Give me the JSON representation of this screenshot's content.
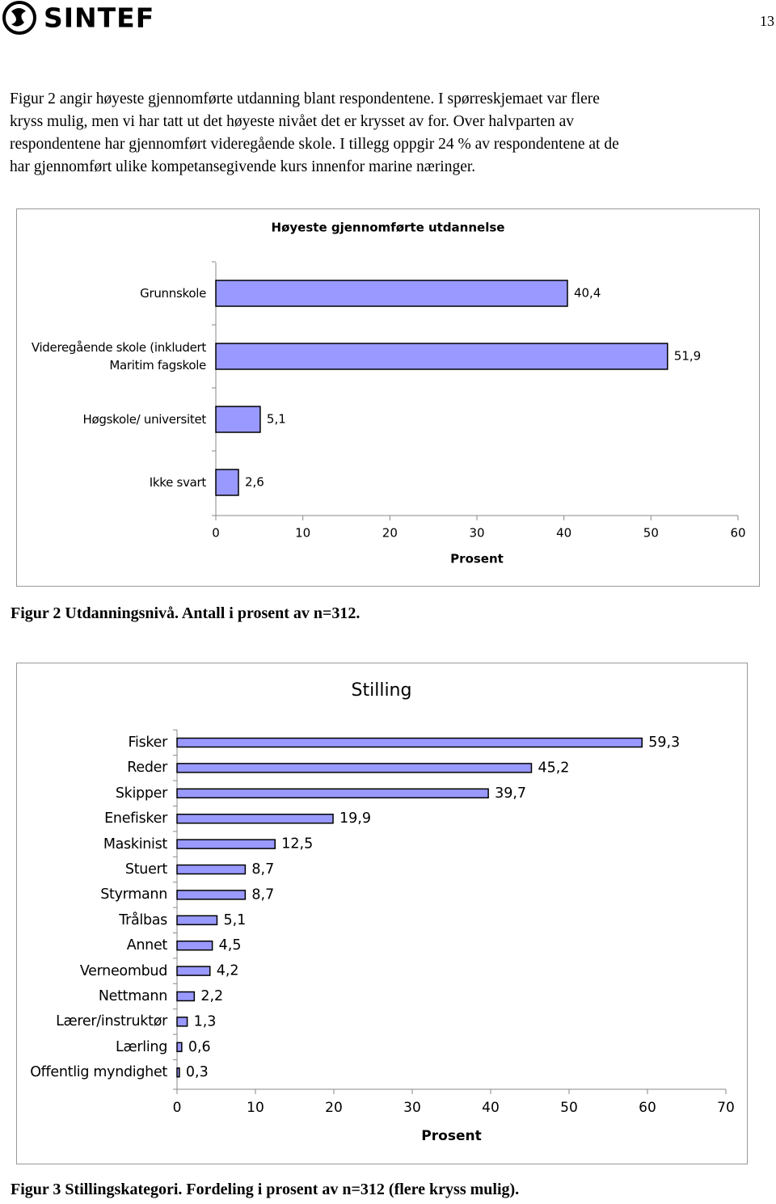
{
  "header": {
    "logo": "SINTEF",
    "page_number": "13"
  },
  "paragraph": [
    "Figur 2 angir høyeste gjennomførte utdanning blant respondentene. I spørreskjemaet var flere",
    "kryss mulig, men vi har tatt ut det høyeste nivået det er krysset av for. Over halvparten av",
    "respondentene har gjennomført videregående skole. I tillegg oppgir 24 % av respondentene at de",
    "har gjennomført ulike kompetansegivende kurs innenfor marine næringer."
  ],
  "chart_data": [
    {
      "type": "bar",
      "orientation": "horizontal",
      "title": "Høyeste gjennomførte utdannelse",
      "categories": [
        "Grunnskole",
        "Videregående skole (inkludert Maritim fagskole",
        "Høgskole/ universitet",
        "Ikke svart"
      ],
      "values": [
        40.4,
        51.9,
        5.1,
        2.6
      ],
      "value_labels": [
        "40,4",
        "51,9",
        "5,1",
        "2,6"
      ],
      "color": "#9999ff",
      "xlabel": "Prosent",
      "xlim": [
        0,
        60
      ],
      "xticks": [
        0,
        10,
        20,
        30,
        40,
        50,
        60
      ]
    },
    {
      "type": "bar",
      "orientation": "horizontal",
      "title": "Stilling",
      "categories": [
        "Fisker",
        "Reder",
        "Skipper",
        "Enefisker",
        "Maskinist",
        "Stuert",
        "Styrmann",
        "Trålbas",
        "Annet",
        "Verneombud",
        "Nettmann",
        "Lærer/instruktør",
        "Lærling",
        "Offentlig myndighet"
      ],
      "values": [
        59.3,
        45.2,
        39.7,
        19.9,
        12.5,
        8.7,
        8.7,
        5.1,
        4.5,
        4.2,
        2.2,
        1.3,
        0.6,
        0.3
      ],
      "value_labels": [
        "59,3",
        "45,2",
        "39,7",
        "19,9",
        "12,5",
        "8,7",
        "8,7",
        "5,1",
        "4,5",
        "4,2",
        "2,2",
        "1,3",
        "0,6",
        "0,3"
      ],
      "color": "#9999ff",
      "xlabel": "Prosent",
      "xlim": [
        0,
        70
      ],
      "xticks": [
        0,
        10,
        20,
        30,
        40,
        50,
        60,
        70
      ]
    }
  ],
  "captions": [
    "Figur 2 Utdanningsnivå. Antall i prosent av n=312.",
    "Figur 3 Stillingskategori. Fordeling i prosent av n=312 (flere kryss mulig)."
  ]
}
